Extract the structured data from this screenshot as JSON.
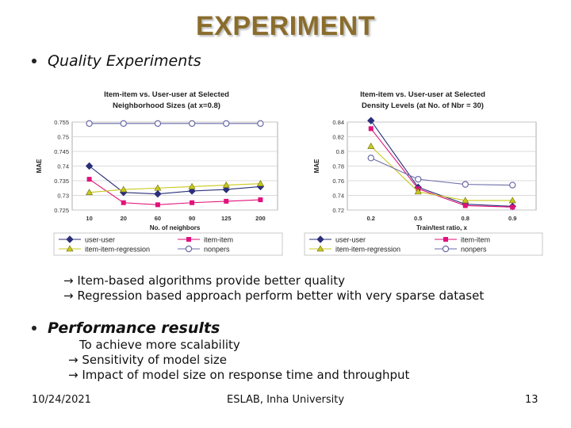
{
  "slide": {
    "title": "EXPERIMENT",
    "bullet1": "Quality Experiments",
    "findings": [
      "→ Item-based algorithms provide better quality",
      "→ Regression based approach perform better with very sparse dataset"
    ],
    "bullet2": "Performance results",
    "performance_lines": [
      "To achieve more scalability",
      "→  Sensitivity  of model size",
      "→  Impact of model size on response time and throughput"
    ],
    "footer_date": "10/24/2021",
    "footer_org": "ESLAB, Inha University",
    "footer_page": "13"
  },
  "colors": {
    "title": "#8a6d2c",
    "user_user": "#2b2f7a",
    "item_item": "#e0127a",
    "item_item_regression": "#c8c81e",
    "nonpers": "#6a6aa8"
  },
  "chart_data": [
    {
      "type": "line",
      "title": "Item-item vs. User-user at Selected Neighborhood Sizes (at x=0.8)",
      "xlabel": "No. of neighbors",
      "ylabel": "MAE",
      "categories": [
        "10",
        "20",
        "60",
        "90",
        "125",
        "200"
      ],
      "ylim": [
        0.725,
        0.755
      ],
      "yticks": [
        "0.755",
        "0.75",
        "0.745",
        "0.74",
        "0.735",
        "0.73",
        "0.725"
      ],
      "grid": true,
      "legend": "bottom",
      "series": [
        {
          "name": "user-user",
          "marker": "diamond",
          "values": [
            0.74,
            0.731,
            0.7305,
            0.7315,
            0.732,
            0.733
          ]
        },
        {
          "name": "item-item",
          "marker": "square",
          "values": [
            0.7355,
            0.7275,
            0.7268,
            0.7275,
            0.728,
            0.7285
          ]
        },
        {
          "name": "item-item-regression",
          "marker": "triangle",
          "values": [
            0.731,
            0.732,
            0.7325,
            0.733,
            0.7335,
            0.734
          ]
        },
        {
          "name": "nonpers",
          "marker": "circle",
          "values": [
            0.7545,
            0.7545,
            0.7545,
            0.7545,
            0.7545,
            0.7545
          ]
        }
      ]
    },
    {
      "type": "line",
      "title": "Item-item vs. User-user at Selected Density Levels (at No. of Nbr = 30)",
      "xlabel": "Train/test ratio, x",
      "ylabel": "MAE",
      "categories": [
        "0.2",
        "0.5",
        "0.8",
        "0.9"
      ],
      "ylim": [
        0.72,
        0.84
      ],
      "yticks": [
        "0.84",
        "0.82",
        "0.8",
        "0.78",
        "0.76",
        "0.74",
        "0.72"
      ],
      "grid": true,
      "legend": "bottom",
      "series": [
        {
          "name": "user-user",
          "marker": "diamond",
          "values": [
            0.842,
            0.751,
            0.728,
            0.725
          ]
        },
        {
          "name": "item-item",
          "marker": "square",
          "values": [
            0.831,
            0.749,
            0.726,
            0.724
          ]
        },
        {
          "name": "item-item-regression",
          "marker": "triangle",
          "values": [
            0.807,
            0.745,
            0.733,
            0.733
          ]
        },
        {
          "name": "nonpers",
          "marker": "circle",
          "values": [
            0.791,
            0.762,
            0.755,
            0.754
          ]
        }
      ]
    }
  ]
}
